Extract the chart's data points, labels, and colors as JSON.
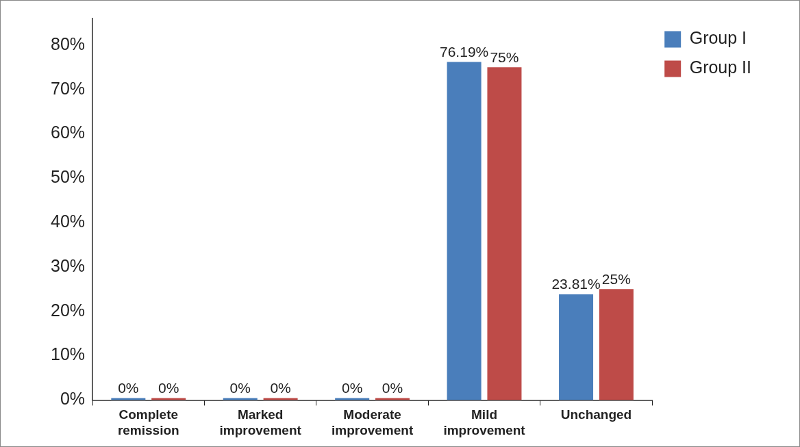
{
  "chart_data": {
    "type": "bar",
    "categories": [
      "Complete remission",
      "Marked improvement",
      "Moderate improvement",
      "Mild improvement",
      "Unchanged"
    ],
    "series": [
      {
        "name": "Group I",
        "color": "#4a7ebb",
        "values": [
          0,
          0,
          0,
          76.19,
          23.81
        ],
        "value_labels": [
          "0%",
          "0%",
          "0%",
          "76.19%",
          "23.81%"
        ]
      },
      {
        "name": "Group II",
        "color": "#be4b48",
        "values": [
          0,
          0,
          0,
          75,
          25
        ],
        "value_labels": [
          "0%",
          "0%",
          "0%",
          "75%",
          "25%"
        ]
      }
    ],
    "ylim": [
      0,
      86
    ],
    "yticks": [
      {
        "value": 0,
        "label": "0%"
      },
      {
        "value": 10,
        "label": "10%"
      },
      {
        "value": 20,
        "label": "20%"
      },
      {
        "value": 30,
        "label": "30%"
      },
      {
        "value": 40,
        "label": "40%"
      },
      {
        "value": 50,
        "label": "50%"
      },
      {
        "value": 60,
        "label": "60%"
      },
      {
        "value": 70,
        "label": "70%"
      },
      {
        "value": 80,
        "label": "80%"
      }
    ],
    "legend": "top right"
  }
}
